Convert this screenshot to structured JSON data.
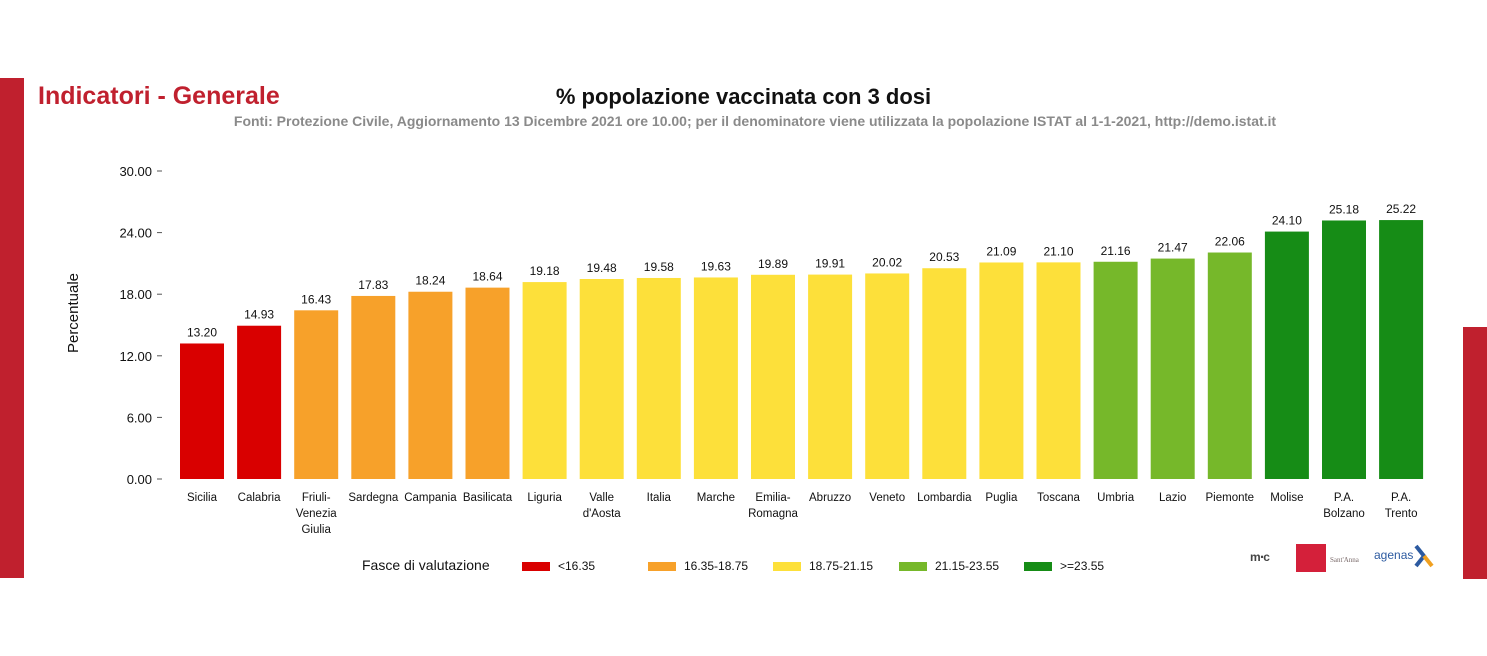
{
  "header": {
    "section_title": "Indicatori - Generale"
  },
  "chart_data": {
    "type": "bar",
    "title": "% popolazione vaccinata con 3 dosi",
    "subtitle": "Fonti: Protezione Civile, Aggiornamento 13 Dicembre 2021 ore 10.00; per il denominatore viene utilizzata la popolazione ISTAT al 1-1-2021, http://demo.istat.it",
    "ylabel": "Percentuale",
    "xlabel": "",
    "ylim": [
      0,
      30
    ],
    "yticks": [
      "0.00",
      "6.00",
      "12.00",
      "18.00",
      "24.00",
      "30.00"
    ],
    "grid": false,
    "categories": [
      [
        "Sicilia"
      ],
      [
        "Calabria"
      ],
      [
        "Friuli-",
        "Venezia",
        "Giulia"
      ],
      [
        "Sardegna"
      ],
      [
        "Campania"
      ],
      [
        "Basilicata"
      ],
      [
        "Liguria"
      ],
      [
        "Valle",
        "d'Aosta"
      ],
      [
        "Italia"
      ],
      [
        "Marche"
      ],
      [
        "Emilia-",
        "Romagna"
      ],
      [
        "Abruzzo"
      ],
      [
        "Veneto"
      ],
      [
        "Lombardia"
      ],
      [
        "Puglia"
      ],
      [
        "Toscana"
      ],
      [
        "Umbria"
      ],
      [
        "Lazio"
      ],
      [
        "Piemonte"
      ],
      [
        "Molise"
      ],
      [
        "P.A.",
        "Bolzano"
      ],
      [
        "P.A.",
        "Trento"
      ]
    ],
    "values": [
      13.2,
      14.93,
      16.43,
      17.83,
      18.24,
      18.64,
      19.18,
      19.48,
      19.58,
      19.63,
      19.89,
      19.91,
      20.02,
      20.53,
      21.09,
      21.1,
      21.16,
      21.47,
      22.06,
      24.1,
      25.18,
      25.22
    ],
    "value_labels": [
      "13.20",
      "14.93",
      "16.43",
      "17.83",
      "18.24",
      "18.64",
      "19.18",
      "19.48",
      "19.58",
      "19.63",
      "19.89",
      "19.91",
      "20.02",
      "20.53",
      "21.09",
      "21.10",
      "21.16",
      "21.47",
      "22.06",
      "24.10",
      "25.18",
      "25.22"
    ],
    "band_index": [
      0,
      0,
      1,
      1,
      1,
      1,
      2,
      2,
      2,
      2,
      2,
      2,
      2,
      2,
      2,
      2,
      3,
      3,
      3,
      4,
      4,
      4
    ],
    "legend": {
      "title": "Fasce di valutazione",
      "placement": "bottom",
      "bands": [
        {
          "label": "<16.35",
          "color": "#d90000"
        },
        {
          "label": "16.35-18.75",
          "color": "#f7a12a"
        },
        {
          "label": "18.75-21.15",
          "color": "#fde03a"
        },
        {
          "label": "21.15-23.55",
          "color": "#76b82a"
        },
        {
          "label": ">=23.55",
          "color": "#168c16"
        }
      ]
    }
  },
  "logos": {
    "agenas": "agenas"
  }
}
